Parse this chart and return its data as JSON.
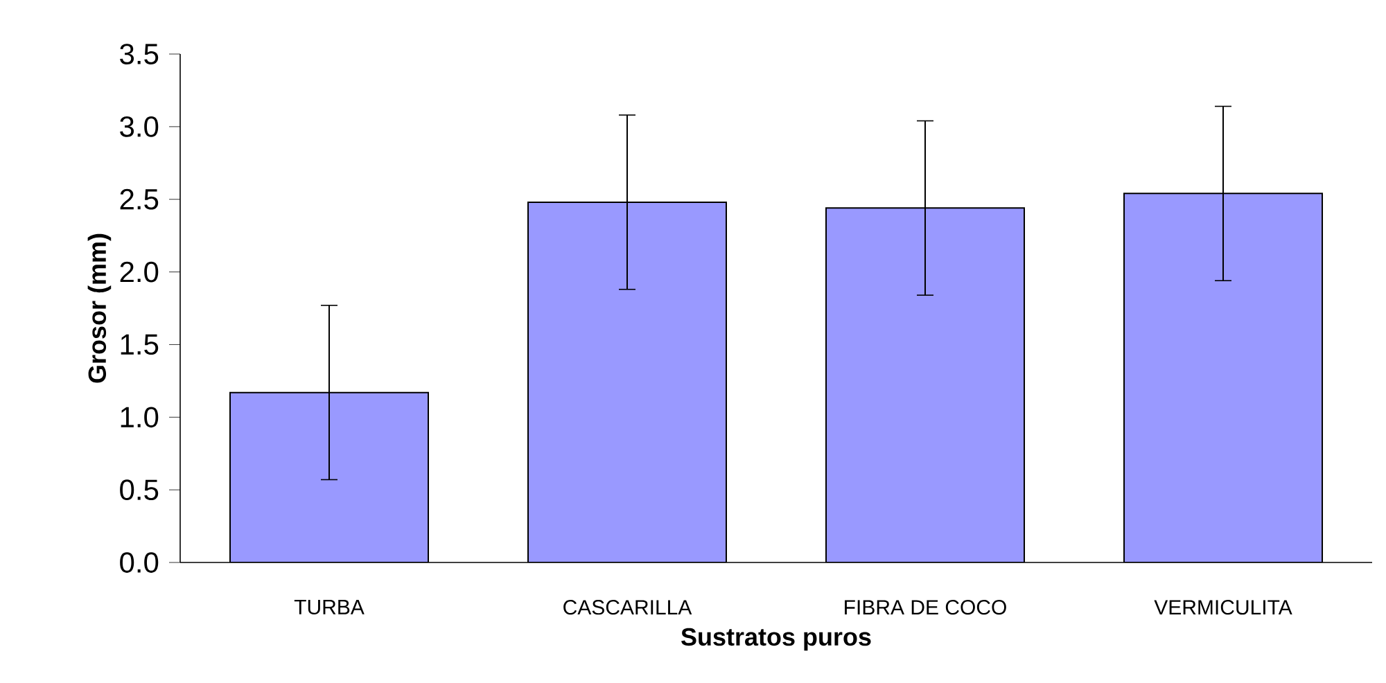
{
  "chart_data": {
    "type": "bar",
    "xlabel": "Sustratos puros",
    "ylabel": "Grosor (mm)",
    "categories": [
      "TURBA",
      "CASCARILLA",
      "FIBRA DE COCO",
      "VERMICULITA"
    ],
    "values": [
      1.17,
      2.48,
      2.44,
      2.54
    ],
    "errors": [
      0.6,
      0.6,
      0.6,
      0.6
    ],
    "color": "#9999ff",
    "ylim": [
      0,
      3.5
    ],
    "yticks": [
      {
        "value": 0,
        "label": "0.0"
      },
      {
        "value": 0.5,
        "label": "0.5"
      },
      {
        "value": 1,
        "label": "1.0"
      },
      {
        "value": 1.5,
        "label": "1.5"
      },
      {
        "value": 2,
        "label": "2.0"
      },
      {
        "value": 2.5,
        "label": "2.5"
      },
      {
        "value": 3,
        "label": "3.0"
      },
      {
        "value": 3.5,
        "label": "3.5"
      }
    ]
  }
}
